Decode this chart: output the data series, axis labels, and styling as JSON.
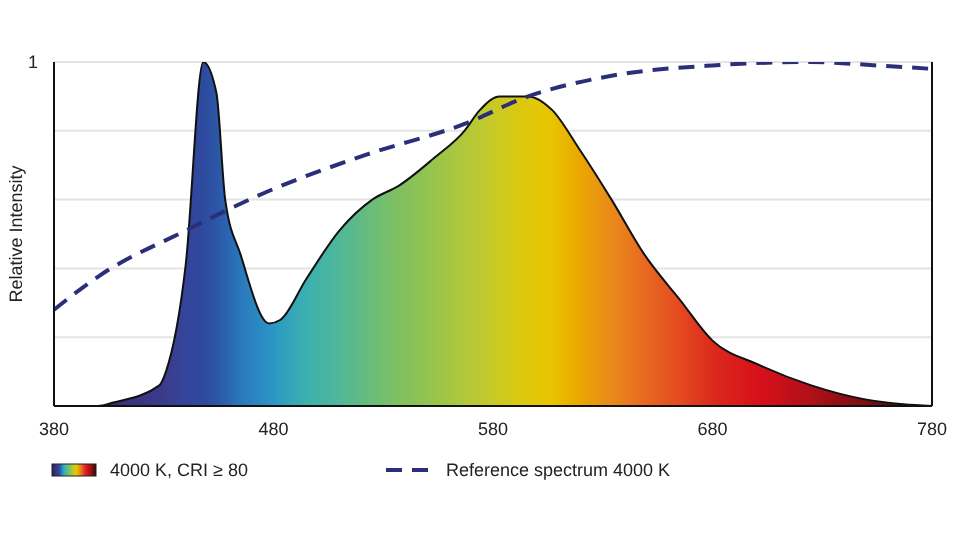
{
  "chart_data": {
    "type": "area",
    "ylabel": "Relative Intensity",
    "xlim": [
      380,
      780
    ],
    "xticks": [
      380,
      480,
      580,
      680,
      780
    ],
    "ylim": [
      0,
      1
    ],
    "yticks": [
      {
        "value": 0,
        "label": null
      },
      {
        "value": 0.2,
        "label": null
      },
      {
        "value": 0.4,
        "label": null
      },
      {
        "value": 0.6,
        "label": null
      },
      {
        "value": 0.8,
        "label": null
      },
      {
        "value": 1,
        "label": "1"
      }
    ],
    "grid": "y",
    "legend": "bottom left",
    "series": [
      {
        "name": "4000 K, CRI ≥ 80",
        "colors": [
          "#2a1f5e",
          "#32286e",
          "#35307a",
          "#3a3a8a",
          "#3a3d8c",
          "#34449a",
          "#2e4a9e",
          "#2c55a6",
          "#2a62b0",
          "#2a78bc",
          "#2a92c4",
          "#2e9ec0",
          "#3cb0b0",
          "#50b898",
          "#6abc78",
          "#80bf60",
          "#98c44c",
          "#b0c83a",
          "#bcc932",
          "#ccca20",
          "#e0c80a",
          "#e8c400",
          "#eaa800",
          "#e98a1a",
          "#e86a20",
          "#e44a20",
          "#dc2a1c",
          "#d8101a",
          "#b01018",
          "#7a1010",
          "#4a0c0c",
          "#300808"
        ],
        "x": [
          380,
          400,
          407,
          428,
          431,
          440,
          448,
          454,
          458,
          465,
          478,
          483,
          495,
          510,
          525,
          537,
          553,
          567,
          574,
          583,
          596,
          607,
          619,
          634,
          649,
          665,
          680,
          701,
          725,
          749,
          767,
          780
        ],
        "values": [
          0,
          0,
          0.01,
          0.06,
          0.1,
          0.41,
          1,
          0.91,
          0.6,
          0.44,
          0.24,
          0.25,
          0.37,
          0.51,
          0.6,
          0.64,
          0.72,
          0.8,
          0.86,
          0.9,
          0.9,
          0.86,
          0.75,
          0.6,
          0.44,
          0.31,
          0.19,
          0.12,
          0.06,
          0.02,
          0.005,
          0
        ]
      },
      {
        "name": "Reference spectrum 4000 K",
        "type": "line",
        "line_style": "dashed",
        "color": "#2b2f7a",
        "x": [
          380,
          401,
          440,
          476,
          522,
          567,
          596,
          634,
          680,
          725,
          755,
          780
        ],
        "values": [
          0.28,
          0.38,
          0.51,
          0.62,
          0.73,
          0.82,
          0.9,
          0.96,
          0.99,
          1,
          0.99,
          0.98
        ]
      }
    ]
  }
}
